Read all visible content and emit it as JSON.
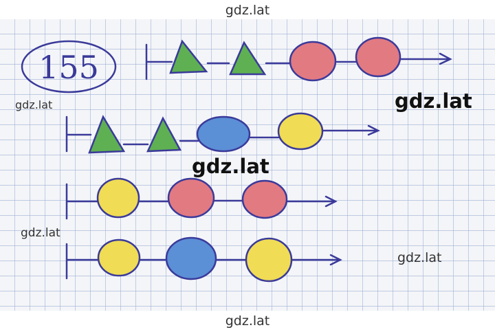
{
  "exercise_number": "155",
  "watermarks": [
    "gdz.lat",
    "gdz.lat",
    "gdz.lat",
    "gdz.lat",
    "gdz.lat",
    "gdz.lat",
    "gdz.lat"
  ]
}
